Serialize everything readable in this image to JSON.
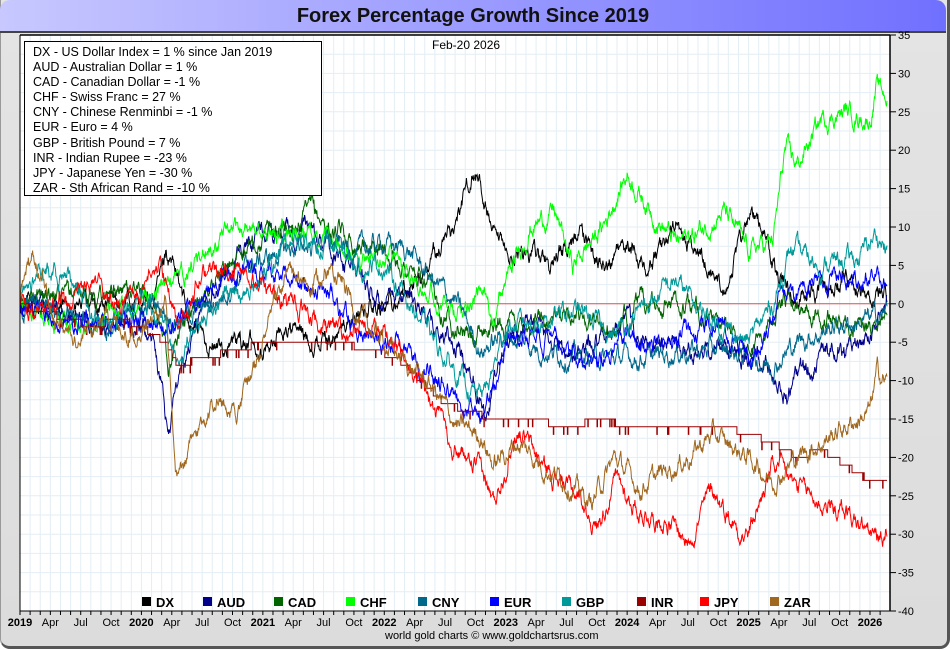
{
  "chart_data": {
    "type": "line",
    "title": "Forex Percentage Growth Since 2019",
    "date_label": "Feb-20  2026",
    "footer": "world gold charts © www.goldchartsrus.com",
    "ylim": [
      -40,
      35
    ],
    "y_ticks": [
      35,
      30,
      25,
      20,
      15,
      10,
      5,
      0,
      -5,
      -10,
      -15,
      -20,
      -25,
      -30,
      -35,
      -40
    ],
    "x_range": [
      2019.0,
      2026.14
    ],
    "x_ticks": [
      {
        "label": "2019",
        "t": 2019.0,
        "bold": true
      },
      {
        "label": "Apr",
        "t": 2019.25,
        "bold": false
      },
      {
        "label": "Jul",
        "t": 2019.5,
        "bold": false
      },
      {
        "label": "Oct",
        "t": 2019.75,
        "bold": false
      },
      {
        "label": "2020",
        "t": 2020.0,
        "bold": true
      },
      {
        "label": "Apr",
        "t": 2020.25,
        "bold": false
      },
      {
        "label": "Jul",
        "t": 2020.5,
        "bold": false
      },
      {
        "label": "Oct",
        "t": 2020.75,
        "bold": false
      },
      {
        "label": "2021",
        "t": 2021.0,
        "bold": true
      },
      {
        "label": "Apr",
        "t": 2021.25,
        "bold": false
      },
      {
        "label": "Jul",
        "t": 2021.5,
        "bold": false
      },
      {
        "label": "Oct",
        "t": 2021.75,
        "bold": false
      },
      {
        "label": "2022",
        "t": 2022.0,
        "bold": true
      },
      {
        "label": "Apr",
        "t": 2022.25,
        "bold": false
      },
      {
        "label": "Jul",
        "t": 2022.5,
        "bold": false
      },
      {
        "label": "Oct",
        "t": 2022.75,
        "bold": false
      },
      {
        "label": "2023",
        "t": 2023.0,
        "bold": true
      },
      {
        "label": "Apr",
        "t": 2023.25,
        "bold": false
      },
      {
        "label": "Jul",
        "t": 2023.5,
        "bold": false
      },
      {
        "label": "Oct",
        "t": 2023.75,
        "bold": false
      },
      {
        "label": "2024",
        "t": 2024.0,
        "bold": true
      },
      {
        "label": "Apr",
        "t": 2024.25,
        "bold": false
      },
      {
        "label": "Jul",
        "t": 2024.5,
        "bold": false
      },
      {
        "label": "Oct",
        "t": 2024.75,
        "bold": false
      },
      {
        "label": "2025",
        "t": 2025.0,
        "bold": true
      },
      {
        "label": "Apr",
        "t": 2025.25,
        "bold": false
      },
      {
        "label": "Jul",
        "t": 2025.5,
        "bold": false
      },
      {
        "label": "Oct",
        "t": 2025.75,
        "bold": false
      },
      {
        "label": "2026",
        "t": 2026.0,
        "bold": true
      }
    ],
    "grid": true,
    "zero_line": true,
    "legend_position": "bottom",
    "summary_box": [
      "DX - US Dollar Index = 1 % since Jan 2019",
      "AUD - Australian Dollar = 1 %",
      "CAD - Canadian Dollar = -1 %",
      "CHF - Swiss Franc = 27 %",
      "CNY - Chinese Renminbi = -1 %",
      "EUR - Euro = 4 %",
      "GBP - British Pound = 7 %",
      "INR - Indian Rupee = -23 %",
      "JPY - Japanese Yen = -30 %",
      "ZAR - Sth African Rand = -10 %"
    ],
    "series": [
      {
        "name": "DX",
        "color": "#000000",
        "step": false,
        "x": [
          2019.0,
          2019.3,
          2019.6,
          2019.9,
          2020.1,
          2020.2,
          2020.25,
          2020.4,
          2020.6,
          2020.8,
          2021.0,
          2021.2,
          2021.4,
          2021.6,
          2021.8,
          2022.0,
          2022.2,
          2022.4,
          2022.6,
          2022.72,
          2022.8,
          2022.9,
          2023.0,
          2023.2,
          2023.4,
          2023.6,
          2023.8,
          2024.0,
          2024.2,
          2024.4,
          2024.6,
          2024.8,
          2024.95,
          2025.0,
          2025.1,
          2025.25,
          2025.4,
          2025.6,
          2025.8,
          2026.0,
          2026.14
        ],
        "y": [
          0,
          -1,
          0,
          0,
          0,
          7,
          5,
          -2,
          -6,
          -5,
          -6,
          -3,
          -5,
          -4,
          -1,
          0,
          2,
          6,
          11,
          17,
          15,
          8,
          6,
          7,
          5,
          9,
          5,
          7,
          5,
          10,
          6,
          3,
          8,
          12,
          10,
          3,
          1,
          2,
          4,
          1,
          1
        ]
      },
      {
        "name": "AUD",
        "color": "#00008b",
        "step": false,
        "x": [
          2019.0,
          2019.3,
          2019.6,
          2019.9,
          2020.1,
          2020.22,
          2020.3,
          2020.45,
          2020.7,
          2021.0,
          2021.2,
          2021.4,
          2021.6,
          2021.8,
          2022.0,
          2022.2,
          2022.4,
          2022.6,
          2022.75,
          2022.85,
          2023.0,
          2023.2,
          2023.4,
          2023.6,
          2023.8,
          2024.0,
          2024.2,
          2024.4,
          2024.6,
          2024.8,
          2025.0,
          2025.2,
          2025.3,
          2025.5,
          2025.7,
          2025.9,
          2026.05,
          2026.14
        ],
        "y": [
          0,
          -1,
          -2,
          -2,
          -4,
          -17,
          -10,
          -2,
          4,
          10,
          9,
          10,
          6,
          4,
          -1,
          2,
          -3,
          -6,
          -10,
          -14,
          -5,
          -2,
          -5,
          -7,
          -4,
          -3,
          -6,
          -5,
          -7,
          -5,
          -7,
          -9,
          -12,
          -8,
          -6,
          -6,
          -4,
          1
        ]
      },
      {
        "name": "CAD",
        "color": "#006400",
        "step": false,
        "x": [
          2019.0,
          2019.3,
          2019.6,
          2019.9,
          2020.1,
          2020.22,
          2020.35,
          2020.6,
          2020.9,
          2021.2,
          2021.4,
          2021.6,
          2021.8,
          2022.0,
          2022.3,
          2022.5,
          2022.75,
          2022.85,
          2023.0,
          2023.3,
          2023.6,
          2023.9,
          2024.1,
          2024.4,
          2024.7,
          2025.0,
          2025.15,
          2025.3,
          2025.5,
          2025.7,
          2025.9,
          2026.05,
          2026.14
        ],
        "y": [
          0,
          2,
          1,
          2,
          1,
          -8,
          -2,
          3,
          8,
          10,
          12,
          9,
          8,
          7,
          3,
          -1,
          -5,
          -3,
          -3,
          -2,
          -1,
          -4,
          0,
          0,
          -2,
          -6,
          -3,
          0,
          0,
          -2,
          -3,
          -2,
          -1
        ]
      },
      {
        "name": "CHF",
        "color": "#00ff00",
        "step": false,
        "x": [
          2019.0,
          2019.3,
          2019.6,
          2019.9,
          2020.1,
          2020.2,
          2020.35,
          2020.6,
          2020.9,
          2021.1,
          2021.3,
          2021.5,
          2021.8,
          2022.0,
          2022.3,
          2022.6,
          2022.75,
          2022.9,
          2023.0,
          2023.2,
          2023.4,
          2023.55,
          2023.8,
          2024.0,
          2024.2,
          2024.4,
          2024.55,
          2024.8,
          2025.0,
          2025.2,
          2025.3,
          2025.4,
          2025.6,
          2025.8,
          2026.0,
          2026.05,
          2026.14
        ],
        "y": [
          0,
          -2,
          -3,
          0,
          1,
          3,
          4,
          8,
          10,
          9,
          10,
          8,
          5,
          7,
          3,
          -2,
          2,
          -1,
          3,
          10,
          12,
          5,
          10,
          17,
          12,
          8,
          9,
          12,
          7,
          8,
          20,
          18,
          24,
          25,
          24,
          28,
          27
        ]
      },
      {
        "name": "CNY",
        "color": "#00688b",
        "step": false,
        "x": [
          2019.0,
          2019.3,
          2019.6,
          2019.9,
          2020.1,
          2020.3,
          2020.6,
          2020.9,
          2021.2,
          2021.5,
          2021.8,
          2022.0,
          2022.2,
          2022.4,
          2022.6,
          2022.8,
          2023.0,
          2023.3,
          2023.6,
          2023.9,
          2024.2,
          2024.5,
          2024.8,
          2025.0,
          2025.2,
          2025.4,
          2025.7,
          2026.0,
          2026.14
        ],
        "y": [
          0,
          -1,
          -3,
          -2,
          0,
          -2,
          0,
          5,
          7,
          8,
          7,
          8,
          7,
          3,
          0,
          -6,
          -4,
          -6,
          -7,
          -7,
          -7,
          -6,
          -6,
          -7,
          -8,
          -5,
          -3,
          -2,
          -1
        ]
      },
      {
        "name": "EUR",
        "color": "#0000ff",
        "step": false,
        "x": [
          2019.0,
          2019.3,
          2019.6,
          2019.9,
          2020.1,
          2020.25,
          2020.4,
          2020.7,
          2021.0,
          2021.2,
          2021.5,
          2021.8,
          2022.0,
          2022.2,
          2022.4,
          2022.6,
          2022.8,
          2022.9,
          2023.0,
          2023.2,
          2023.4,
          2023.6,
          2023.8,
          2024.0,
          2024.2,
          2024.4,
          2024.6,
          2024.8,
          2025.0,
          2025.15,
          2025.25,
          2025.4,
          2025.6,
          2025.8,
          2026.0,
          2026.14
        ],
        "y": [
          0,
          -1,
          -3,
          -2,
          -2,
          -3,
          0,
          3,
          5,
          3,
          2,
          -3,
          -5,
          -7,
          -9,
          -12,
          -15,
          -11,
          -6,
          -4,
          -5,
          -6,
          -7,
          -4,
          -6,
          -4,
          -4,
          -3,
          -7,
          -5,
          2,
          1,
          3,
          4,
          3,
          4
        ]
      },
      {
        "name": "GBP",
        "color": "#009999",
        "step": false,
        "x": [
          2019.0,
          2019.2,
          2019.4,
          2019.6,
          2019.8,
          2020.0,
          2020.2,
          2020.3,
          2020.6,
          2020.9,
          2021.2,
          2021.5,
          2021.8,
          2022.0,
          2022.3,
          2022.5,
          2022.75,
          2022.85,
          2023.0,
          2023.3,
          2023.6,
          2023.9,
          2024.1,
          2024.4,
          2024.6,
          2024.8,
          2025.0,
          2025.2,
          2025.35,
          2025.6,
          2025.9,
          2026.05,
          2026.14
        ],
        "y": [
          0,
          5,
          3,
          -2,
          -3,
          2,
          -5,
          -7,
          0,
          2,
          8,
          8,
          5,
          5,
          -2,
          -7,
          -12,
          -11,
          -3,
          -2,
          -1,
          -4,
          -1,
          3,
          -1,
          -3,
          -5,
          0,
          7,
          5,
          6,
          9,
          7
        ]
      },
      {
        "name": "INR",
        "color": "#990000",
        "step": true,
        "x": [
          2019.0,
          2019.2,
          2019.4,
          2019.6,
          2019.8,
          2020.0,
          2020.2,
          2020.3,
          2020.5,
          2020.8,
          2021.0,
          2021.3,
          2021.6,
          2021.9,
          2022.1,
          2022.3,
          2022.5,
          2022.7,
          2022.9,
          2023.2,
          2023.5,
          2023.8,
          2024.0,
          2024.4,
          2024.8,
          2025.0,
          2025.2,
          2025.4,
          2025.6,
          2025.8,
          2026.0,
          2026.14
        ],
        "y": [
          0,
          -1,
          -2,
          -3,
          -2,
          -3,
          -5,
          -8,
          -7,
          -6,
          -5,
          -5,
          -5,
          -6,
          -7,
          -10,
          -13,
          -14,
          -15,
          -15,
          -16,
          -15,
          -16,
          -16,
          -16,
          -17,
          -18,
          -20,
          -19,
          -21,
          -23,
          -23
        ]
      },
      {
        "name": "JPY",
        "color": "#ff0000",
        "step": false,
        "x": [
          2019.0,
          2019.2,
          2019.4,
          2019.6,
          2019.8,
          2020.0,
          2020.15,
          2020.3,
          2020.5,
          2020.8,
          2021.0,
          2021.2,
          2021.5,
          2021.8,
          2022.0,
          2022.2,
          2022.4,
          2022.6,
          2022.8,
          2022.9,
          2023.1,
          2023.3,
          2023.6,
          2023.75,
          2023.9,
          2024.1,
          2024.3,
          2024.5,
          2024.7,
          2024.9,
          2025.0,
          2025.2,
          2025.4,
          2025.6,
          2025.8,
          2026.0,
          2026.1,
          2026.14
        ],
        "y": [
          0,
          -1,
          1,
          2,
          0,
          2,
          5,
          -2,
          3,
          5,
          2,
          0,
          -3,
          -4,
          -4,
          -8,
          -14,
          -19,
          -22,
          -26,
          -16,
          -21,
          -25,
          -29,
          -23,
          -27,
          -28,
          -31,
          -24,
          -29,
          -30,
          -21,
          -24,
          -26,
          -27,
          -30,
          -31,
          -29
        ]
      },
      {
        "name": "ZAR",
        "color": "#a0671e",
        "step": false,
        "x": [
          2019.0,
          2019.1,
          2019.3,
          2019.5,
          2019.7,
          2019.9,
          2020.1,
          2020.2,
          2020.28,
          2020.4,
          2020.6,
          2020.8,
          2021.0,
          2021.2,
          2021.4,
          2021.6,
          2021.8,
          2022.0,
          2022.2,
          2022.4,
          2022.6,
          2022.8,
          2022.9,
          2023.1,
          2023.3,
          2023.5,
          2023.7,
          2023.9,
          2024.1,
          2024.3,
          2024.5,
          2024.7,
          2024.9,
          2025.0,
          2025.2,
          2025.4,
          2025.6,
          2025.8,
          2026.0,
          2026.06,
          2026.14
        ],
        "y": [
          0,
          7,
          -2,
          -5,
          -1,
          -4,
          -2,
          0,
          -24,
          -19,
          -12,
          -14,
          -5,
          4,
          2,
          5,
          -2,
          -5,
          -8,
          -11,
          -16,
          -17,
          -21,
          -18,
          -21,
          -23,
          -26,
          -20,
          -24,
          -22,
          -20,
          -17,
          -19,
          -20,
          -23,
          -20,
          -18,
          -16,
          -14,
          -9,
          -10
        ]
      }
    ]
  }
}
